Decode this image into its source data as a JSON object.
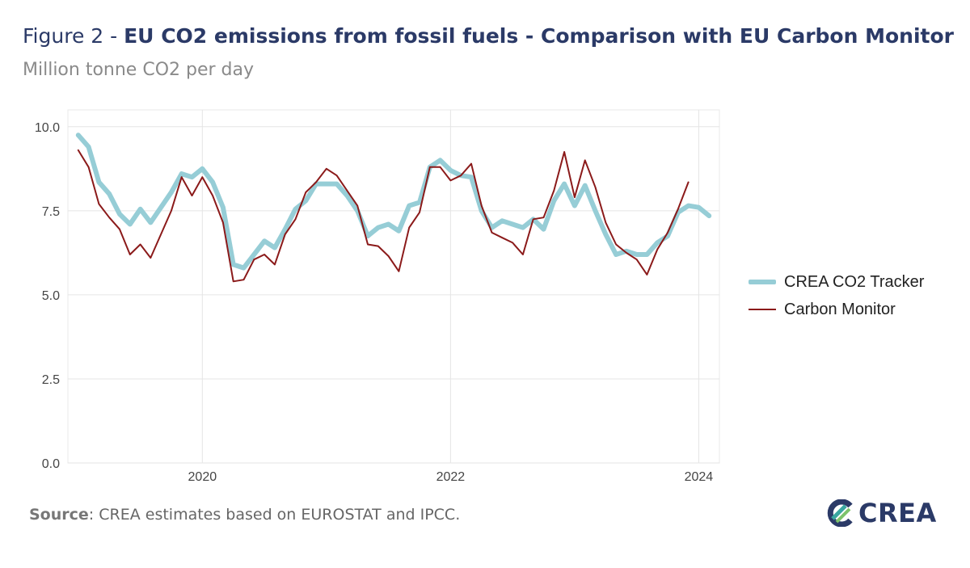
{
  "header": {
    "title_prefix": "Figure 2 - ",
    "title_main": "EU CO2 emissions from fossil fuels - Comparison with EU Carbon Monitor",
    "subtitle": "Million tonne CO2 per day"
  },
  "footer": {
    "source_label": "Source",
    "source_text": ": CREA estimates based on EUROSTAT and IPCC.",
    "logo_text": "CREA"
  },
  "colors": {
    "crea": "#96cdd6",
    "carbon_monitor": "#8b1a1a",
    "title": "#2b3a67",
    "grid": "#e5e5e5"
  },
  "chart_data": {
    "type": "line",
    "ylim": [
      0,
      10.5
    ],
    "y_ticks": [
      "0.0",
      "2.5",
      "5.0",
      "7.5",
      "10.0"
    ],
    "x_ticks": [
      "2020",
      "2022",
      "2024"
    ],
    "x_range": [
      "2018-12",
      "2024-03"
    ],
    "legend_position": "right",
    "grid": true,
    "series": [
      {
        "name": "CREA CO2 Tracker",
        "dates": [
          "2019-01",
          "2019-02",
          "2019-03",
          "2019-04",
          "2019-05",
          "2019-06",
          "2019-07",
          "2019-08",
          "2019-09",
          "2019-10",
          "2019-11",
          "2019-12",
          "2020-01",
          "2020-02",
          "2020-03",
          "2020-04",
          "2020-05",
          "2020-06",
          "2020-07",
          "2020-08",
          "2020-09",
          "2020-10",
          "2020-11",
          "2020-12",
          "2021-01",
          "2021-02",
          "2021-03",
          "2021-04",
          "2021-05",
          "2021-06",
          "2021-07",
          "2021-08",
          "2021-09",
          "2021-10",
          "2021-11",
          "2021-12",
          "2022-01",
          "2022-02",
          "2022-03",
          "2022-04",
          "2022-05",
          "2022-06",
          "2022-07",
          "2022-08",
          "2022-09",
          "2022-10",
          "2022-11",
          "2022-12",
          "2023-01",
          "2023-02",
          "2023-03",
          "2023-04",
          "2023-05",
          "2023-06",
          "2023-07",
          "2023-08",
          "2023-09",
          "2023-10",
          "2023-11",
          "2023-12",
          "2024-01",
          "2024-02"
        ],
        "values": [
          9.75,
          9.4,
          8.35,
          8.0,
          7.4,
          7.1,
          7.55,
          7.15,
          7.6,
          8.05,
          8.6,
          8.5,
          8.75,
          8.35,
          7.6,
          5.9,
          5.8,
          6.2,
          6.6,
          6.4,
          6.95,
          7.55,
          7.8,
          8.3,
          8.3,
          8.3,
          7.95,
          7.5,
          6.75,
          7.0,
          7.1,
          6.9,
          7.65,
          7.75,
          8.8,
          9.0,
          8.7,
          8.55,
          8.5,
          7.5,
          7.0,
          7.2,
          7.1,
          7.0,
          7.25,
          6.95,
          7.8,
          8.3,
          7.65,
          8.25,
          7.5,
          6.8,
          6.2,
          6.3,
          6.2,
          6.2,
          6.55,
          6.75,
          7.45,
          7.65,
          7.6,
          7.35
        ]
      },
      {
        "name": "Carbon Monitor",
        "dates": [
          "2019-01",
          "2019-02",
          "2019-03",
          "2019-04",
          "2019-05",
          "2019-06",
          "2019-07",
          "2019-08",
          "2019-09",
          "2019-10",
          "2019-11",
          "2019-12",
          "2020-01",
          "2020-02",
          "2020-03",
          "2020-04",
          "2020-05",
          "2020-06",
          "2020-07",
          "2020-08",
          "2020-09",
          "2020-10",
          "2020-11",
          "2020-12",
          "2021-01",
          "2021-02",
          "2021-03",
          "2021-04",
          "2021-05",
          "2021-06",
          "2021-07",
          "2021-08",
          "2021-09",
          "2021-10",
          "2021-11",
          "2021-12",
          "2022-01",
          "2022-02",
          "2022-03",
          "2022-04",
          "2022-05",
          "2022-06",
          "2022-07",
          "2022-08",
          "2022-09",
          "2022-10",
          "2022-11",
          "2022-12",
          "2023-01",
          "2023-02",
          "2023-03",
          "2023-04",
          "2023-05",
          "2023-06",
          "2023-07",
          "2023-08",
          "2023-09",
          "2023-10",
          "2023-11",
          "2023-12"
        ],
        "values": [
          9.3,
          8.8,
          7.7,
          7.3,
          6.95,
          6.2,
          6.5,
          6.1,
          6.8,
          7.5,
          8.5,
          7.95,
          8.5,
          7.95,
          7.15,
          5.4,
          5.45,
          6.05,
          6.2,
          5.9,
          6.8,
          7.25,
          8.05,
          8.35,
          8.75,
          8.55,
          8.1,
          7.65,
          6.5,
          6.45,
          6.15,
          5.7,
          7.0,
          7.45,
          8.8,
          8.8,
          8.4,
          8.55,
          8.9,
          7.65,
          6.85,
          6.7,
          6.55,
          6.2,
          7.25,
          7.3,
          8.1,
          9.25,
          7.9,
          9.0,
          8.2,
          7.15,
          6.5,
          6.25,
          6.05,
          5.6,
          6.35,
          6.85,
          7.55,
          8.35
        ]
      }
    ]
  }
}
